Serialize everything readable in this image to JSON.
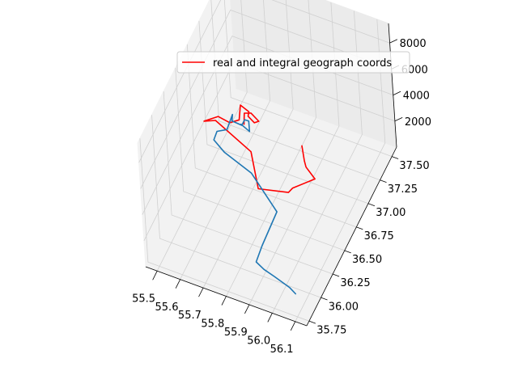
{
  "chart_data": {
    "type": "line",
    "projection": "3d",
    "title": "",
    "xlabel": "",
    "ylabel": "",
    "zlabel": "",
    "grid": true,
    "legend_position": "top",
    "xlim": [
      55.45,
      56.15
    ],
    "ylim": [
      35.7,
      37.6
    ],
    "zlim": [
      0,
      9500
    ],
    "x_ticks": [
      55.5,
      55.6,
      55.7,
      55.8,
      55.9,
      56.0,
      56.1
    ],
    "x_tick_labels": [
      "55.5",
      "55.6",
      "55.7",
      "55.8",
      "55.9",
      "56.0",
      "56.1"
    ],
    "y_ticks": [
      35.75,
      36.0,
      36.25,
      36.5,
      36.75,
      37.0,
      37.25,
      37.5
    ],
    "y_tick_labels": [
      "35.75",
      "36.00",
      "36.25",
      "36.50",
      "36.75",
      "37.00",
      "37.25",
      "37.50"
    ],
    "z_ticks": [
      2000,
      4000,
      6000,
      8000
    ],
    "z_tick_labels": [
      "2000",
      "4000",
      "6000",
      "8000"
    ],
    "legend": [
      "real and integral geograph coords"
    ],
    "series": [
      {
        "name": "real and integral geograph coords",
        "color": "#ff0000",
        "points": [
          [
            55.8,
            37.3,
            0
          ],
          [
            55.84,
            37.16,
            100
          ],
          [
            55.86,
            37.1,
            200
          ],
          [
            55.92,
            37.0,
            400
          ],
          [
            55.86,
            36.82,
            600
          ],
          [
            55.86,
            36.74,
            850
          ],
          [
            55.76,
            36.6,
            1500
          ],
          [
            55.7,
            36.76,
            2800
          ],
          [
            55.53,
            36.85,
            3450
          ],
          [
            55.5,
            36.76,
            3850
          ],
          [
            55.55,
            36.82,
            4100
          ],
          [
            55.6,
            36.82,
            3950
          ],
          [
            55.64,
            36.83,
            4350
          ],
          [
            55.65,
            36.83,
            5550
          ],
          [
            55.7,
            36.77,
            5800
          ],
          [
            55.7,
            36.75,
            5600
          ],
          [
            55.7,
            36.86,
            4300
          ],
          [
            55.72,
            36.86,
            4550
          ],
          [
            55.69,
            36.85,
            5050
          ],
          [
            55.66,
            36.85,
            4850
          ],
          [
            55.67,
            36.79,
            4500
          ]
        ]
      },
      {
        "name": "",
        "color": "#1f77b4",
        "points": [
          [
            56.05,
            35.95,
            0
          ],
          [
            56.02,
            35.97,
            150
          ],
          [
            55.95,
            36.0,
            300
          ],
          [
            55.9,
            36.02,
            400
          ],
          [
            55.86,
            36.05,
            500
          ],
          [
            55.86,
            36.18,
            800
          ],
          [
            55.86,
            36.5,
            1100
          ],
          [
            55.72,
            36.66,
            2000
          ],
          [
            55.6,
            36.68,
            2700
          ],
          [
            55.55,
            36.71,
            3100
          ],
          [
            55.55,
            36.78,
            3250
          ],
          [
            55.59,
            36.8,
            3500
          ],
          [
            55.6,
            36.88,
            4150
          ],
          [
            55.62,
            36.78,
            4500
          ],
          [
            55.65,
            36.83,
            4000
          ],
          [
            55.66,
            36.85,
            4350
          ],
          [
            55.68,
            36.84,
            4450
          ],
          [
            55.69,
            36.8,
            4000
          ],
          [
            55.64,
            36.86,
            3800
          ]
        ]
      }
    ]
  }
}
